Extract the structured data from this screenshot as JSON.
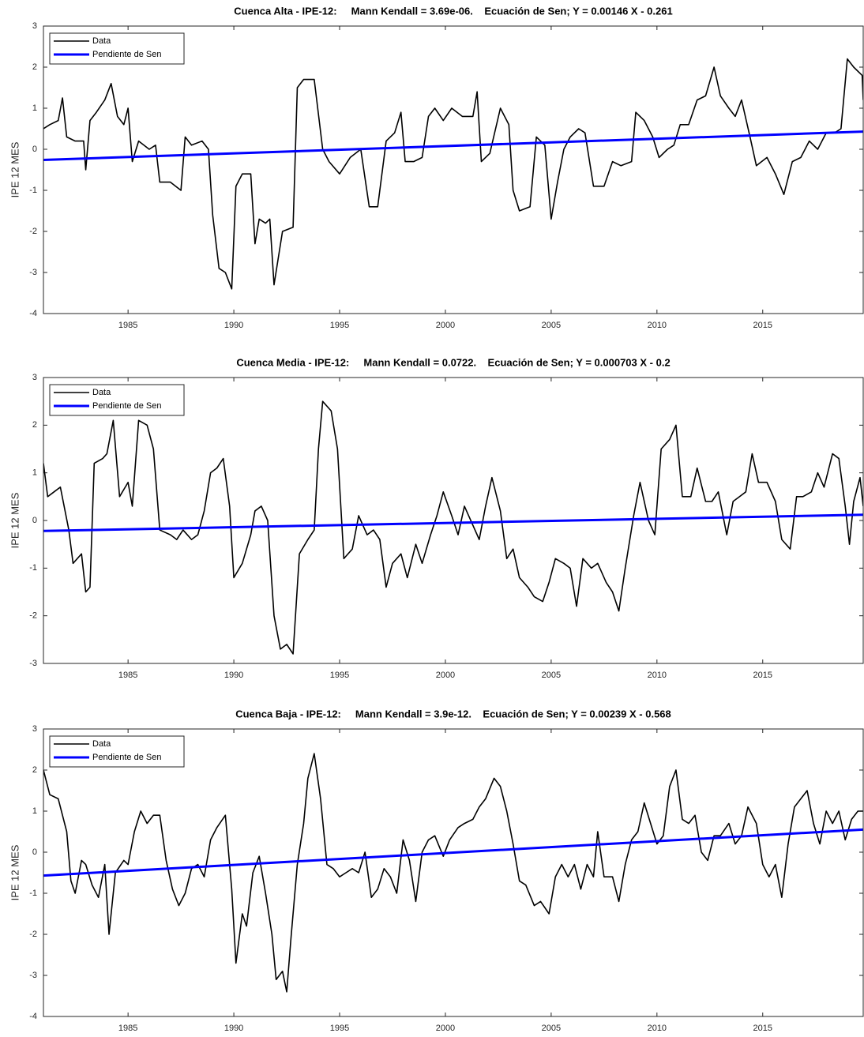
{
  "chart_data": [
    {
      "type": "line",
      "title": "Cuenca Alta - IPE-12:     Mann Kendall = 3.69e-06.    Ecuación de Sen; Y = 0.00146 X - 0.261",
      "ylabel": "IPE 12 MES",
      "xlim": [
        1981,
        2019.75
      ],
      "ylim": [
        -4,
        3
      ],
      "xticks": [
        1985,
        1990,
        1995,
        2000,
        2005,
        2010,
        2015
      ],
      "yticks": [
        -4,
        -3,
        -2,
        -1,
        0,
        1,
        2,
        3
      ],
      "legend": "upper left",
      "series": [
        {
          "name": "Data",
          "color": "#000000",
          "x": [
            1981.0,
            1981.3,
            1981.7,
            1981.9,
            1982.1,
            1982.5,
            1982.9,
            1983.0,
            1983.2,
            1983.5,
            1983.9,
            1984.2,
            1984.5,
            1984.8,
            1985.0,
            1985.2,
            1985.5,
            1986.0,
            1986.3,
            1986.5,
            1987.0,
            1987.5,
            1987.7,
            1988.0,
            1988.5,
            1988.8,
            1989.0,
            1989.3,
            1989.6,
            1989.9,
            1990.1,
            1990.4,
            1990.8,
            1991.0,
            1991.2,
            1991.5,
            1991.7,
            1991.9,
            1992.3,
            1992.8,
            1993.0,
            1993.3,
            1993.8,
            1994.2,
            1994.5,
            1995.0,
            1995.5,
            1996.0,
            1996.4,
            1996.8,
            1997.2,
            1997.6,
            1997.9,
            1998.1,
            1998.5,
            1998.9,
            1999.2,
            1999.5,
            1999.9,
            2000.3,
            2000.8,
            2001.3,
            2001.5,
            2001.7,
            2002.1,
            2002.6,
            2003.0,
            2003.2,
            2003.5,
            2004.0,
            2004.3,
            2004.7,
            2005.0,
            2005.3,
            2005.6,
            2005.9,
            2006.3,
            2006.6,
            2007.0,
            2007.5,
            2007.9,
            2008.3,
            2008.8,
            2009.0,
            2009.4,
            2009.8,
            2010.1,
            2010.5,
            2010.8,
            2011.1,
            2011.5,
            2011.9,
            2012.3,
            2012.7,
            2013.0,
            2013.4,
            2013.7,
            2014.0,
            2014.4,
            2014.7,
            2015.2,
            2015.6,
            2016.0,
            2016.4,
            2016.8,
            2017.2,
            2017.6,
            2018.0,
            2018.4,
            2018.7,
            2019.0,
            2019.3,
            2019.7,
            2019.75
          ],
          "values": [
            0.5,
            0.6,
            0.7,
            1.25,
            0.3,
            0.2,
            0.2,
            -0.5,
            0.7,
            0.9,
            1.2,
            1.6,
            0.8,
            0.6,
            1.0,
            -0.3,
            0.2,
            0.0,
            0.1,
            -0.8,
            -0.8,
            -1.0,
            0.3,
            0.1,
            0.2,
            0.0,
            -1.6,
            -2.9,
            -3.0,
            -3.4,
            -0.9,
            -0.6,
            -0.6,
            -2.3,
            -1.7,
            -1.8,
            -1.7,
            -3.3,
            -2.0,
            -1.9,
            1.5,
            1.7,
            1.7,
            0.0,
            -0.3,
            -0.6,
            -0.2,
            0.0,
            -1.4,
            -1.4,
            0.2,
            0.4,
            0.9,
            -0.3,
            -0.3,
            -0.2,
            0.8,
            1.0,
            0.7,
            1.0,
            0.8,
            0.8,
            1.4,
            -0.3,
            -0.1,
            1.0,
            0.6,
            -1.0,
            -1.5,
            -1.4,
            0.3,
            0.1,
            -1.7,
            -0.8,
            0.0,
            0.3,
            0.5,
            0.4,
            -0.9,
            -0.9,
            -0.3,
            -0.4,
            -0.3,
            0.9,
            0.7,
            0.3,
            -0.2,
            0.0,
            0.1,
            0.6,
            0.6,
            1.2,
            1.3,
            2.0,
            1.3,
            1.0,
            0.8,
            1.2,
            0.3,
            -0.4,
            -0.2,
            -0.6,
            -1.1,
            -0.3,
            -0.2,
            0.2,
            0.0,
            0.4,
            0.4,
            0.5,
            2.2,
            2.0,
            1.8,
            1.2
          ]
        },
        {
          "name": "Pendiente de Sen",
          "color": "#0000ff",
          "x": [
            1981,
            2019.75
          ],
          "values": [
            -0.26,
            0.43
          ]
        }
      ]
    },
    {
      "type": "line",
      "title": "Cuenca Media - IPE-12:     Mann Kendall = 0.0722.    Ecuación de Sen; Y = 0.000703 X - 0.2",
      "ylabel": "IPE 12 MES",
      "xlim": [
        1981,
        2019.75
      ],
      "ylim": [
        -3,
        3
      ],
      "xticks": [
        1985,
        1990,
        1995,
        2000,
        2005,
        2010,
        2015
      ],
      "yticks": [
        -3,
        -2,
        -1,
        0,
        1,
        2,
        3
      ],
      "legend": "upper left",
      "series": [
        {
          "name": "Data",
          "color": "#000000",
          "x": [
            1981.0,
            1981.2,
            1981.5,
            1981.8,
            1982.2,
            1982.4,
            1982.8,
            1983.0,
            1983.2,
            1983.4,
            1983.8,
            1984.0,
            1984.3,
            1984.6,
            1985.0,
            1985.2,
            1985.5,
            1985.9,
            1986.2,
            1986.5,
            1987.0,
            1987.3,
            1987.6,
            1988.0,
            1988.3,
            1988.6,
            1988.9,
            1989.2,
            1989.5,
            1989.8,
            1990.0,
            1990.4,
            1990.8,
            1991.0,
            1991.3,
            1991.6,
            1991.9,
            1992.2,
            1992.5,
            1992.8,
            1993.1,
            1993.5,
            1993.8,
            1994.0,
            1994.2,
            1994.6,
            1994.9,
            1995.2,
            1995.6,
            1995.9,
            1996.3,
            1996.6,
            1996.9,
            1997.2,
            1997.5,
            1997.9,
            1998.2,
            1998.6,
            1998.9,
            1999.3,
            1999.6,
            1999.9,
            2000.3,
            2000.6,
            2000.9,
            2001.3,
            2001.6,
            2001.9,
            2002.2,
            2002.6,
            2002.9,
            2003.2,
            2003.5,
            2003.9,
            2004.2,
            2004.6,
            2004.9,
            2005.2,
            2005.6,
            2005.9,
            2006.2,
            2006.5,
            2006.9,
            2007.2,
            2007.6,
            2007.9,
            2008.2,
            2008.5,
            2008.9,
            2009.2,
            2009.6,
            2009.9,
            2010.2,
            2010.6,
            2010.9,
            2011.2,
            2011.6,
            2011.9,
            2012.3,
            2012.6,
            2012.9,
            2013.3,
            2013.6,
            2013.9,
            2014.2,
            2014.5,
            2014.8,
            2015.2,
            2015.6,
            2015.9,
            2016.3,
            2016.6,
            2016.9,
            2017.3,
            2017.6,
            2017.9,
            2018.3,
            2018.6,
            2018.9,
            2019.1,
            2019.3,
            2019.6,
            2019.75
          ],
          "values": [
            1.2,
            0.5,
            0.6,
            0.7,
            -0.2,
            -0.9,
            -0.7,
            -1.5,
            -1.4,
            1.2,
            1.3,
            1.4,
            2.1,
            0.5,
            0.8,
            0.3,
            2.1,
            2.0,
            1.5,
            -0.2,
            -0.3,
            -0.4,
            -0.2,
            -0.4,
            -0.3,
            0.2,
            1.0,
            1.1,
            1.3,
            0.3,
            -1.2,
            -0.9,
            -0.3,
            0.2,
            0.3,
            0.0,
            -2.0,
            -2.7,
            -2.6,
            -2.8,
            -0.7,
            -0.4,
            -0.2,
            1.5,
            2.5,
            2.3,
            1.5,
            -0.8,
            -0.6,
            0.1,
            -0.3,
            -0.2,
            -0.4,
            -1.4,
            -0.9,
            -0.7,
            -1.2,
            -0.5,
            -0.9,
            -0.3,
            0.1,
            0.6,
            0.1,
            -0.3,
            0.3,
            -0.1,
            -0.4,
            0.3,
            0.9,
            0.2,
            -0.8,
            -0.6,
            -1.2,
            -1.4,
            -1.6,
            -1.7,
            -1.3,
            -0.8,
            -0.9,
            -1.0,
            -1.8,
            -0.8,
            -1.0,
            -0.9,
            -1.3,
            -1.5,
            -1.9,
            -1.0,
            0.1,
            0.8,
            0.0,
            -0.3,
            1.5,
            1.7,
            2.0,
            0.5,
            0.5,
            1.1,
            0.4,
            0.4,
            0.6,
            -0.3,
            0.4,
            0.5,
            0.6,
            1.4,
            0.8,
            0.8,
            0.4,
            -0.4,
            -0.6,
            0.5,
            0.5,
            0.6,
            1.0,
            0.7,
            1.4,
            1.3,
            0.3,
            -0.5,
            0.4,
            0.9,
            0.3
          ]
        },
        {
          "name": "Pendiente de Sen",
          "color": "#0000ff",
          "x": [
            1981,
            2019.75
          ],
          "values": [
            -0.22,
            0.12
          ]
        }
      ]
    },
    {
      "type": "line",
      "title": "Cuenca Baja - IPE-12:     Mann Kendall = 3.9e-12.    Ecuación de Sen; Y = 0.00239 X - 0.568",
      "ylabel": "IPE 12 MES",
      "xlim": [
        1981,
        2019.75
      ],
      "ylim": [
        -4,
        3
      ],
      "xticks": [
        1985,
        1990,
        1995,
        2000,
        2005,
        2010,
        2015
      ],
      "yticks": [
        -4,
        -3,
        -2,
        -1,
        0,
        1,
        2,
        3
      ],
      "legend": "upper left",
      "series": [
        {
          "name": "Data",
          "color": "#000000",
          "x": [
            1981.0,
            1981.3,
            1981.7,
            1982.1,
            1982.3,
            1982.5,
            1982.8,
            1983.0,
            1983.3,
            1983.6,
            1983.9,
            1984.1,
            1984.4,
            1984.8,
            1985.0,
            1985.3,
            1985.6,
            1985.9,
            1986.2,
            1986.5,
            1986.8,
            1987.1,
            1987.4,
            1987.7,
            1988.0,
            1988.3,
            1988.6,
            1988.9,
            1989.2,
            1989.6,
            1989.9,
            1990.1,
            1990.4,
            1990.6,
            1990.9,
            1991.2,
            1991.5,
            1991.8,
            1992.0,
            1992.3,
            1992.5,
            1992.7,
            1993.0,
            1993.3,
            1993.5,
            1993.8,
            1994.1,
            1994.4,
            1994.7,
            1995.0,
            1995.3,
            1995.6,
            1995.9,
            1996.2,
            1996.5,
            1996.8,
            1997.1,
            1997.4,
            1997.7,
            1998.0,
            1998.3,
            1998.6,
            1998.9,
            1999.2,
            1999.5,
            1999.9,
            2000.2,
            2000.6,
            2000.9,
            2001.3,
            2001.6,
            2001.9,
            2002.3,
            2002.6,
            2002.9,
            2003.2,
            2003.5,
            2003.8,
            2004.2,
            2004.5,
            2004.9,
            2005.2,
            2005.5,
            2005.8,
            2006.1,
            2006.4,
            2006.7,
            2007.0,
            2007.2,
            2007.5,
            2007.9,
            2008.2,
            2008.5,
            2008.8,
            2009.1,
            2009.4,
            2009.7,
            2010.0,
            2010.3,
            2010.6,
            2010.9,
            2011.2,
            2011.5,
            2011.8,
            2012.1,
            2012.4,
            2012.7,
            2013.0,
            2013.4,
            2013.7,
            2014.0,
            2014.3,
            2014.7,
            2015.0,
            2015.3,
            2015.6,
            2015.9,
            2016.2,
            2016.5,
            2016.8,
            2017.1,
            2017.4,
            2017.7,
            2018.0,
            2018.3,
            2018.6,
            2018.9,
            2019.2,
            2019.5,
            2019.75
          ],
          "values": [
            2.0,
            1.4,
            1.3,
            0.5,
            -0.7,
            -1.0,
            -0.2,
            -0.3,
            -0.8,
            -1.1,
            -0.3,
            -2.0,
            -0.5,
            -0.2,
            -0.3,
            0.5,
            1.0,
            0.7,
            0.9,
            0.9,
            -0.2,
            -0.9,
            -1.3,
            -1.0,
            -0.4,
            -0.3,
            -0.6,
            0.3,
            0.6,
            0.9,
            -0.9,
            -2.7,
            -1.5,
            -1.8,
            -0.5,
            -0.1,
            -1.0,
            -2.0,
            -3.1,
            -2.9,
            -3.4,
            -2.1,
            -0.3,
            0.7,
            1.8,
            2.4,
            1.3,
            -0.3,
            -0.4,
            -0.6,
            -0.5,
            -0.4,
            -0.5,
            0.0,
            -1.1,
            -0.9,
            -0.4,
            -0.6,
            -1.0,
            0.3,
            -0.2,
            -1.2,
            0.0,
            0.3,
            0.4,
            -0.1,
            0.3,
            0.6,
            0.7,
            0.8,
            1.1,
            1.3,
            1.8,
            1.6,
            1.0,
            0.2,
            -0.7,
            -0.8,
            -1.3,
            -1.2,
            -1.5,
            -0.6,
            -0.3,
            -0.6,
            -0.3,
            -0.9,
            -0.3,
            -0.6,
            0.5,
            -0.6,
            -0.6,
            -1.2,
            -0.3,
            0.3,
            0.5,
            1.2,
            0.7,
            0.2,
            0.4,
            1.6,
            2.0,
            0.8,
            0.7,
            0.9,
            0.0,
            -0.2,
            0.4,
            0.4,
            0.7,
            0.2,
            0.4,
            1.1,
            0.7,
            -0.3,
            -0.6,
            -0.3,
            -1.1,
            0.2,
            1.1,
            1.3,
            1.5,
            0.7,
            0.2,
            1.0,
            0.7,
            1.0,
            0.3,
            0.8,
            1.0,
            1.0
          ]
        },
        {
          "name": "Pendiente de Sen",
          "color": "#0000ff",
          "x": [
            1981,
            2019.75
          ],
          "values": [
            -0.57,
            0.55
          ]
        }
      ]
    }
  ]
}
